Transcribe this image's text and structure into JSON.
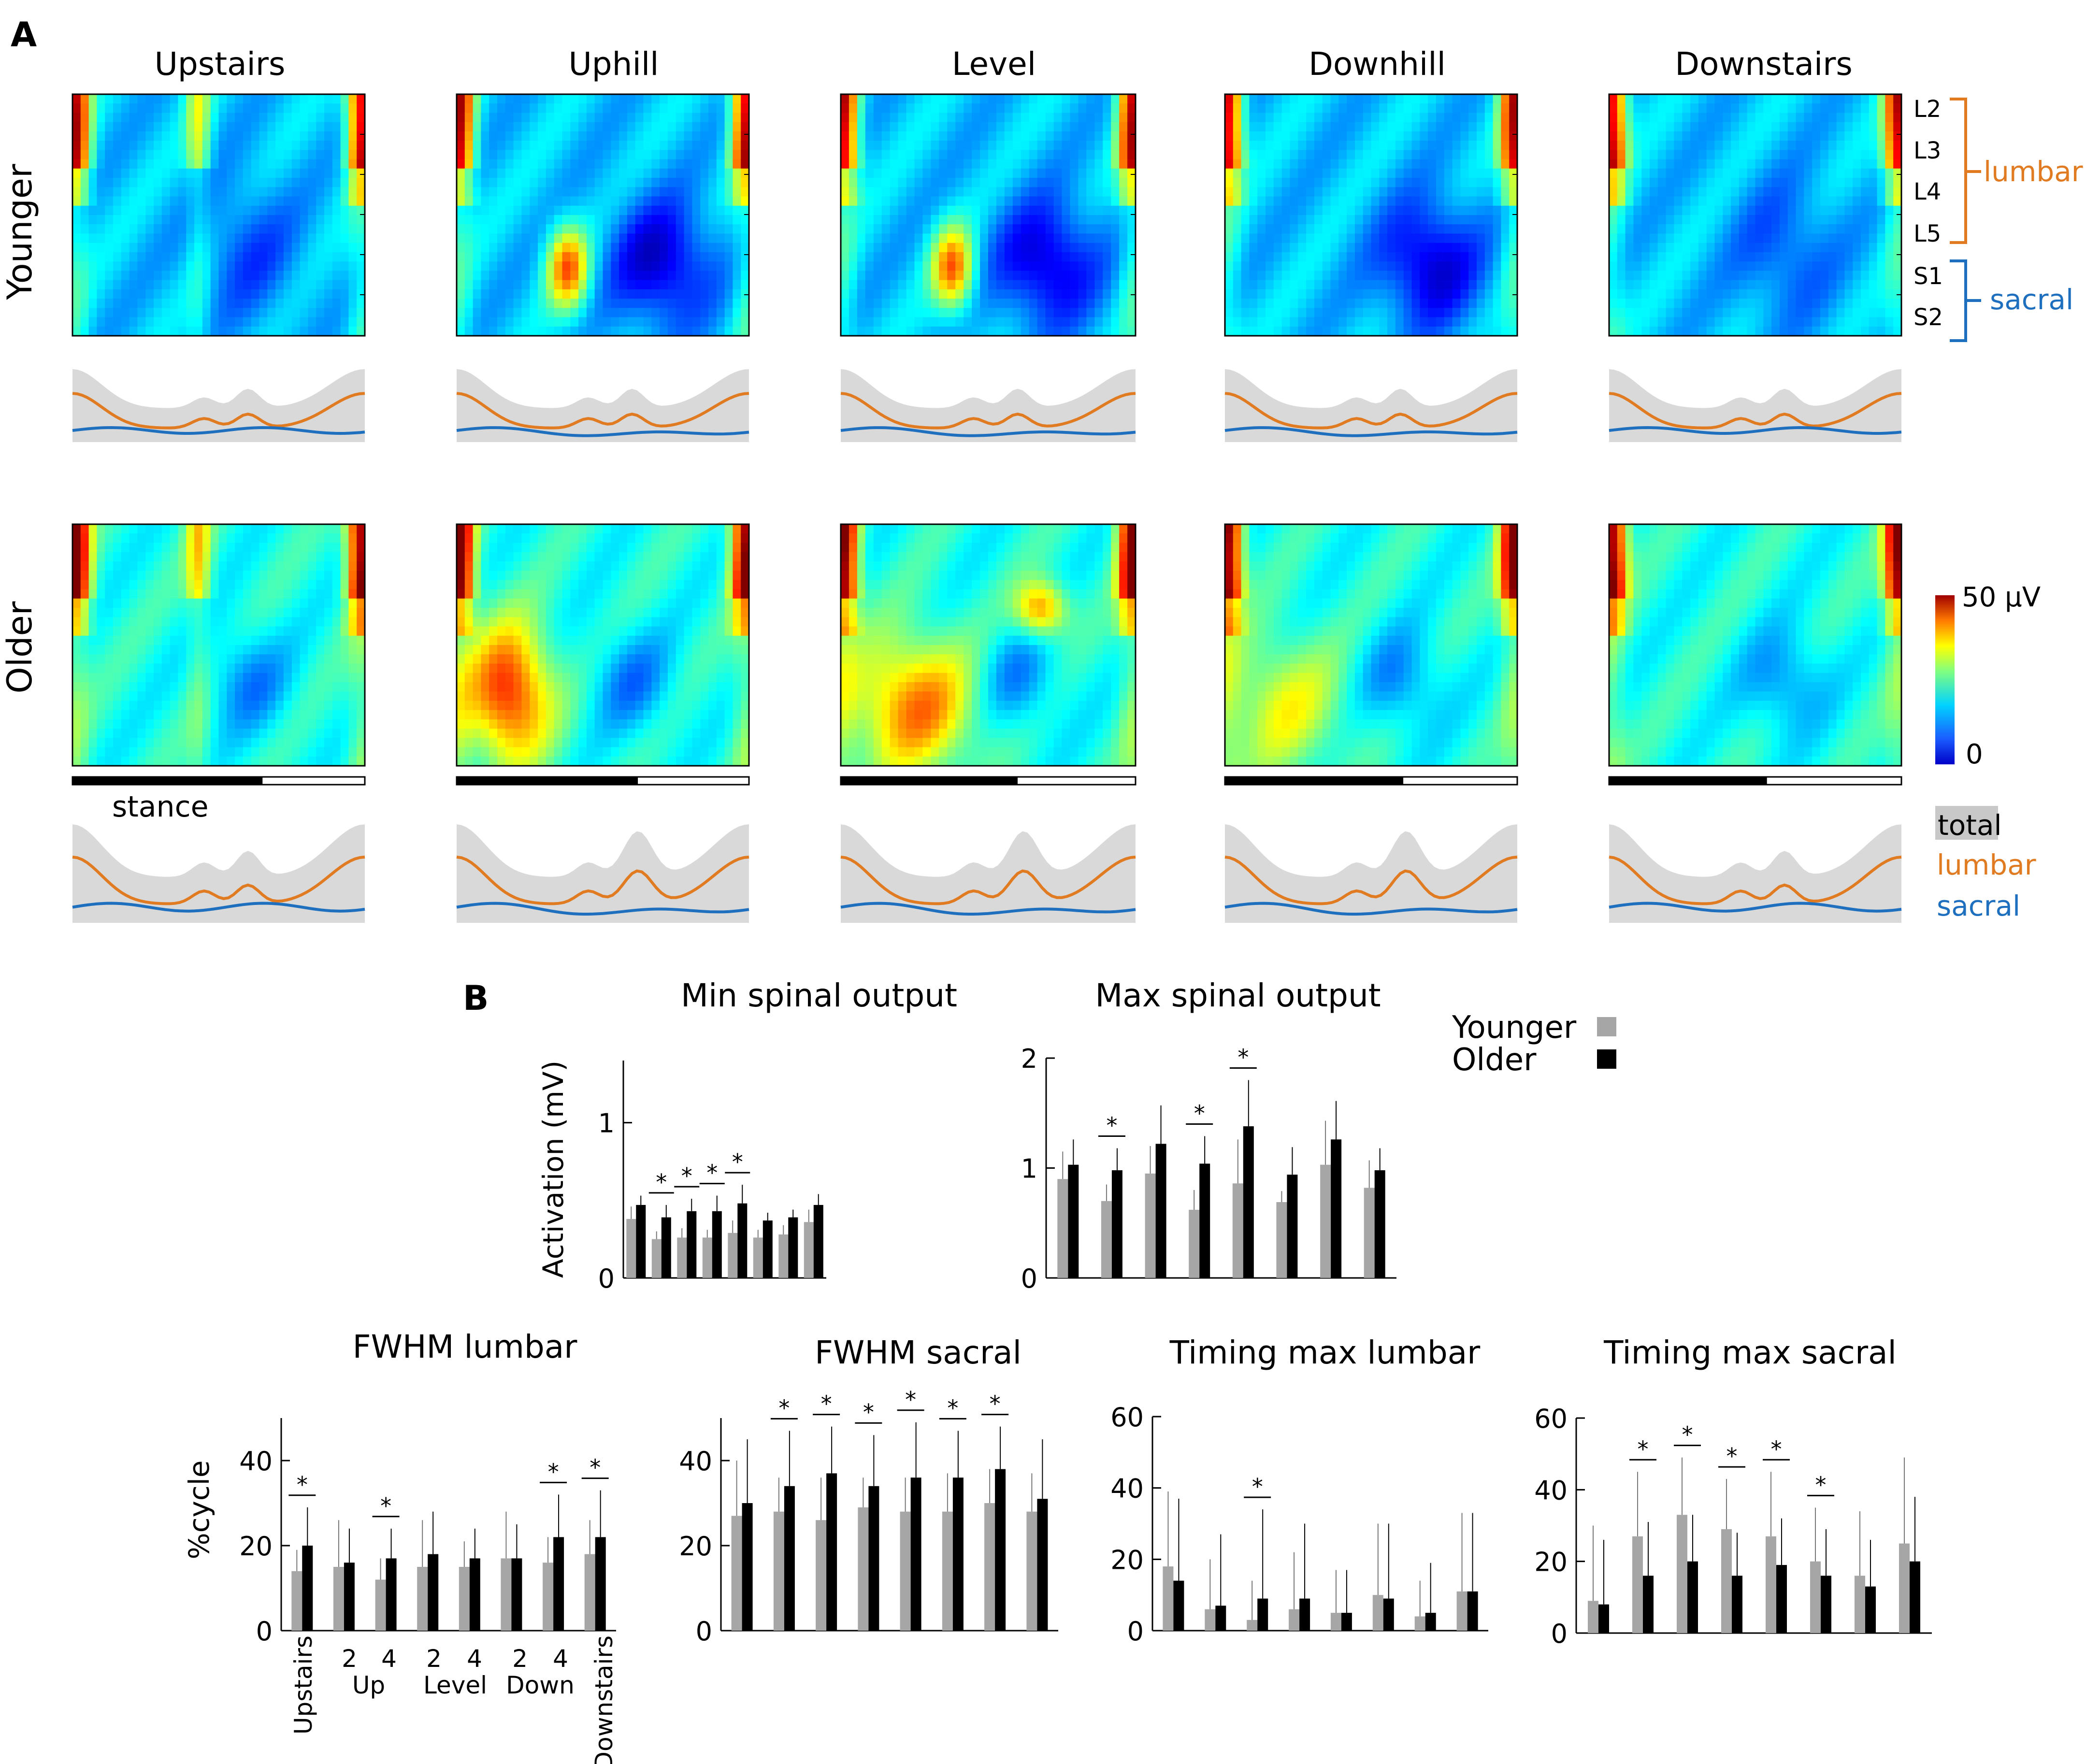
{
  "panel_labels": {
    "a": "A",
    "b": "B"
  },
  "heatmaps": {
    "conditions": [
      "Upstairs",
      "Uphill",
      "Level",
      "Downhill",
      "Downstairs"
    ],
    "groups": [
      "Younger",
      "Older"
    ],
    "segments": [
      "L2",
      "L3",
      "L4",
      "L5",
      "S1",
      "S2"
    ],
    "bracket_labels": {
      "lumbar": "lumbar",
      "sacral": "sacral"
    },
    "colorbar": {
      "max_label": "50 μV",
      "min_label": "0",
      "range_uV": [
        0,
        50
      ]
    },
    "stance_label": "stance",
    "stance_fraction": [
      0.65,
      0.62,
      0.6,
      0.61,
      0.54
    ],
    "trace_legend": {
      "total": "total",
      "lumbar": "lumbar",
      "sacral": "sacral"
    },
    "colors": {
      "lumbar": "#E07B22",
      "sacral": "#1F6FBF",
      "total_band": "#d9d9d9"
    }
  },
  "chart_data": [
    {
      "type": "bar",
      "title": "Min spinal output",
      "ylabel": "Activation (mV)",
      "ylim": [
        0,
        1.4
      ],
      "yticks": [
        0,
        1
      ],
      "categories": [
        "Upstairs",
        "Up 2",
        "Up 4",
        "Level 2",
        "Level 4",
        "Down 2",
        "Down 4",
        "Downstairs"
      ],
      "series": [
        {
          "name": "Younger",
          "color": "#a6a6a6",
          "values": [
            0.38,
            0.25,
            0.26,
            0.26,
            0.29,
            0.26,
            0.28,
            0.36
          ],
          "err": [
            0.08,
            0.05,
            0.06,
            0.05,
            0.08,
            0.05,
            0.06,
            0.08
          ]
        },
        {
          "name": "Older",
          "color": "#000000",
          "values": [
            0.47,
            0.39,
            0.43,
            0.43,
            0.48,
            0.37,
            0.39,
            0.47
          ],
          "err": [
            0.06,
            0.08,
            0.08,
            0.1,
            0.12,
            0.05,
            0.05,
            0.07
          ]
        }
      ],
      "significant": [
        1,
        2,
        3,
        4
      ]
    },
    {
      "type": "bar",
      "title": "Max spinal output",
      "ylabel": "",
      "ylim": [
        0,
        2
      ],
      "yticks": [
        0,
        1,
        2
      ],
      "categories": [
        "Upstairs",
        "Up 2",
        "Up 4",
        "Level 2",
        "Level 4",
        "Down 2",
        "Down 4",
        "Downstairs"
      ],
      "series": [
        {
          "name": "Younger",
          "color": "#a6a6a6",
          "values": [
            0.9,
            0.7,
            0.95,
            0.62,
            0.86,
            0.69,
            1.03,
            0.82
          ],
          "err": [
            0.25,
            0.15,
            0.25,
            0.18,
            0.4,
            0.1,
            0.4,
            0.25
          ]
        },
        {
          "name": "Older",
          "color": "#000000",
          "values": [
            1.03,
            0.98,
            1.22,
            1.04,
            1.38,
            0.94,
            1.26,
            0.98
          ],
          "err": [
            0.23,
            0.2,
            0.35,
            0.25,
            0.42,
            0.25,
            0.35,
            0.2
          ]
        }
      ],
      "significant": [
        1,
        3,
        4
      ]
    },
    {
      "type": "bar",
      "title": "FWHM lumbar",
      "ylabel": "%cycle",
      "ylim": [
        0,
        50
      ],
      "yticks": [
        0,
        20,
        40
      ],
      "categories": [
        "Upstairs",
        "Up 2",
        "Up 4",
        "Level 2",
        "Level 4",
        "Down 2",
        "Down 4",
        "Downstairs"
      ],
      "series": [
        {
          "name": "Younger",
          "color": "#a6a6a6",
          "values": [
            14,
            15,
            12,
            15,
            15,
            17,
            16,
            18
          ],
          "err": [
            5,
            11,
            5,
            11,
            6,
            11,
            6,
            8
          ]
        },
        {
          "name": "Older",
          "color": "#000000",
          "values": [
            20,
            16,
            17,
            18,
            17,
            17,
            22,
            22
          ],
          "err": [
            9,
            8,
            7,
            10,
            7,
            8,
            10,
            11
          ]
        }
      ],
      "significant": [
        0,
        2,
        6,
        7
      ]
    },
    {
      "type": "bar",
      "title": "FWHM sacral",
      "ylabel": "",
      "ylim": [
        0,
        50
      ],
      "yticks": [
        0,
        20,
        40
      ],
      "categories": [
        "Upstairs",
        "Up 2",
        "Up 4",
        "Level 2",
        "Level 4",
        "Down 2",
        "Down 4",
        "Downstairs"
      ],
      "series": [
        {
          "name": "Younger",
          "color": "#a6a6a6",
          "values": [
            27,
            28,
            26,
            29,
            28,
            28,
            30,
            28
          ],
          "err": [
            13,
            8,
            10,
            7,
            8,
            9,
            8,
            9
          ]
        },
        {
          "name": "Older",
          "color": "#000000",
          "values": [
            30,
            34,
            37,
            34,
            36,
            36,
            38,
            31
          ],
          "err": [
            15,
            13,
            11,
            12,
            13,
            11,
            10,
            14
          ]
        }
      ],
      "significant": [
        1,
        2,
        3,
        4,
        5,
        6
      ]
    },
    {
      "type": "bar",
      "title": "Timing max lumbar",
      "ylabel": "",
      "ylim": [
        0,
        60
      ],
      "yticks": [
        0,
        20,
        40,
        60
      ],
      "categories": [
        "Upstairs",
        "Up 2",
        "Up 4",
        "Level 2",
        "Level 4",
        "Down 2",
        "Down 4",
        "Downstairs"
      ],
      "series": [
        {
          "name": "Younger",
          "color": "#a6a6a6",
          "values": [
            18,
            6,
            3,
            6,
            5,
            10,
            4,
            11
          ],
          "err": [
            21,
            14,
            11,
            16,
            12,
            20,
            10,
            22
          ]
        },
        {
          "name": "Older",
          "color": "#000000",
          "values": [
            14,
            7,
            9,
            9,
            5,
            9,
            5,
            11
          ],
          "err": [
            23,
            20,
            25,
            21,
            12,
            21,
            14,
            22
          ]
        }
      ],
      "significant": [
        2
      ]
    },
    {
      "type": "bar",
      "title": "Timing max sacral",
      "ylabel": "",
      "ylim": [
        0,
        60
      ],
      "yticks": [
        0,
        20,
        40,
        60
      ],
      "categories": [
        "Upstairs",
        "Up 2",
        "Up 4",
        "Level 2",
        "Level 4",
        "Down 2",
        "Down 4",
        "Downstairs"
      ],
      "series": [
        {
          "name": "Younger",
          "color": "#a6a6a6",
          "values": [
            9,
            27,
            33,
            29,
            27,
            20,
            16,
            25
          ],
          "err": [
            21,
            18,
            16,
            14,
            18,
            15,
            18,
            24
          ]
        },
        {
          "name": "Older",
          "color": "#000000",
          "values": [
            8,
            16,
            20,
            16,
            19,
            16,
            13,
            20
          ],
          "err": [
            18,
            15,
            13,
            12,
            13,
            13,
            13,
            18
          ]
        }
      ],
      "significant": [
        1,
        2,
        3,
        4,
        5
      ]
    }
  ],
  "bar_legend": {
    "younger": "Younger",
    "older": "Older"
  },
  "x_axis_labels": {
    "upstairs": "Upstairs",
    "up_2": "2",
    "up_4": "4",
    "up": "Up",
    "level_2": "2",
    "level_4": "4",
    "level": "Level",
    "down_2": "2",
    "down_4": "4",
    "down": "Down",
    "downstairs": "Downstairs"
  },
  "significance_marker": "*"
}
